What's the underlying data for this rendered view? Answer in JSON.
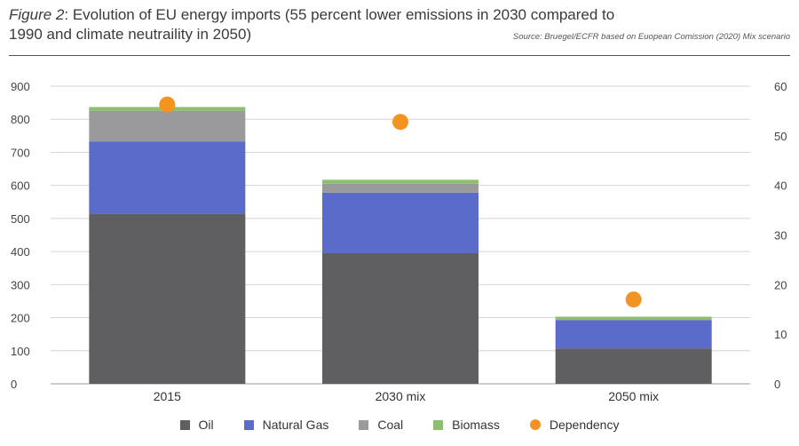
{
  "header": {
    "figure_label": "Figure 2",
    "title_rest": ": Evolution of EU energy imports (55 percent lower emissions in 2030 compared to 1990 and climate neutraility in 2050)",
    "source": "Source: Bruegel/ECFR based on Euopean Comission (2020) Mix scenario"
  },
  "colors": {
    "oil": "#5f5f62",
    "gas": "#5a6bc9",
    "coal": "#9a9a9c",
    "biomass": "#8cbf6e",
    "dependency": "#f39321"
  },
  "chart_data": {
    "type": "bar",
    "stacked": true,
    "categories": [
      "2015",
      "2030 mix",
      "2050 mix"
    ],
    "series": [
      {
        "name": "Oil",
        "values": [
          515,
          395,
          107
        ]
      },
      {
        "name": "Natural Gas",
        "values": [
          218,
          183,
          85
        ]
      },
      {
        "name": "Coal",
        "values": [
          92,
          27,
          3
        ]
      },
      {
        "name": "Biomass",
        "values": [
          12,
          12,
          8
        ]
      }
    ],
    "dependency": {
      "name": "Dependency",
      "values": [
        56.3,
        52.8,
        17.0
      ]
    },
    "ylim": [
      0,
      900
    ],
    "yticks": [
      "0",
      "100",
      "200",
      "300",
      "400",
      "500",
      "600",
      "700",
      "800",
      "900"
    ],
    "y2lim": [
      0,
      60
    ],
    "y2ticks": [
      "0",
      "10",
      "20",
      "30",
      "40",
      "50",
      "60"
    ],
    "grid": true,
    "legend_position": "bottom"
  }
}
